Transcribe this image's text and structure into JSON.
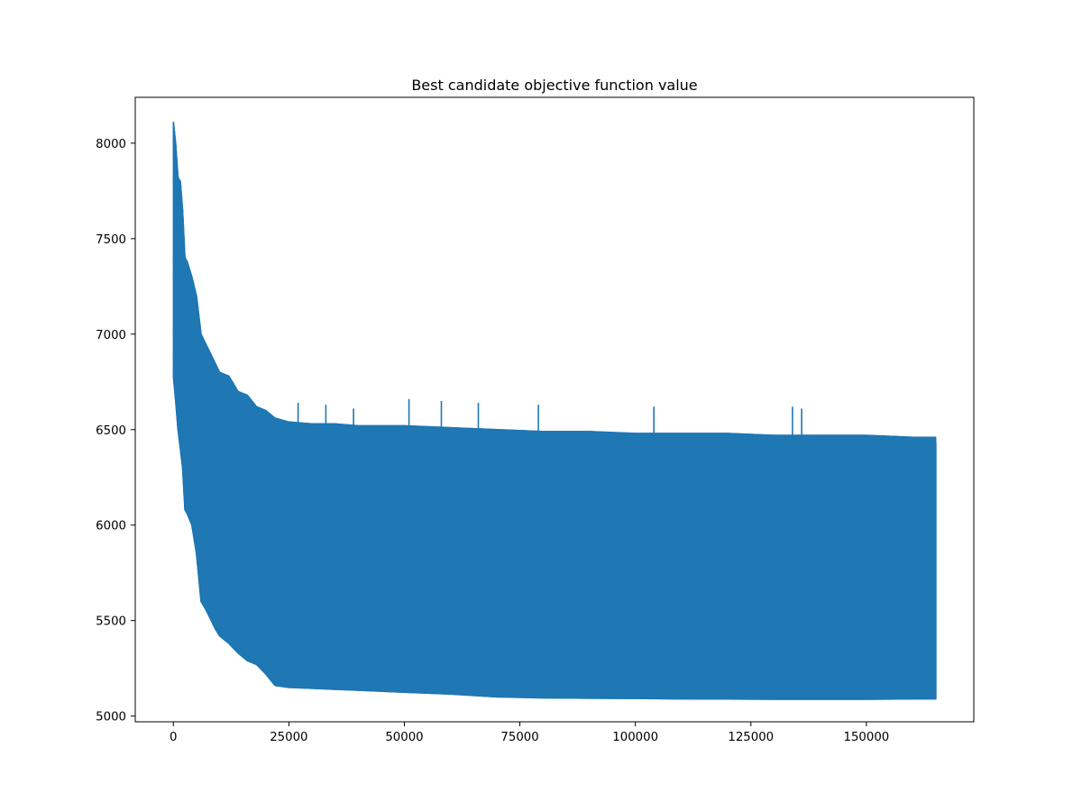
{
  "chart_data": {
    "type": "line",
    "title": "Best candidate objective function value",
    "xlabel": "",
    "ylabel": "",
    "xlim": [
      -8250,
      173250
    ],
    "ylim": [
      4970,
      8240
    ],
    "grid": false,
    "legend": "none",
    "xticks": [
      {
        "value": 0,
        "label": "0"
      },
      {
        "value": 25000,
        "label": "25000"
      },
      {
        "value": 50000,
        "label": "50000"
      },
      {
        "value": 75000,
        "label": "75000"
      },
      {
        "value": 100000,
        "label": "100000"
      },
      {
        "value": 125000,
        "label": "125000"
      },
      {
        "value": 150000,
        "label": "150000"
      }
    ],
    "yticks": [
      {
        "value": 5000,
        "label": "5000"
      },
      {
        "value": 5500,
        "label": "5500"
      },
      {
        "value": 6000,
        "label": "6000"
      },
      {
        "value": 6500,
        "label": "6500"
      },
      {
        "value": 7000,
        "label": "7000"
      },
      {
        "value": 7500,
        "label": "7500"
      },
      {
        "value": 8000,
        "label": "8000"
      }
    ],
    "series": [
      {
        "color": "#1f77b4",
        "description": "dense oscillating trace: upper and lower envelopes",
        "x": [
          0,
          500,
          1000,
          1500,
          2000,
          2500,
          3000,
          4000,
          5000,
          6000,
          7000,
          8000,
          9000,
          10000,
          12000,
          14000,
          16000,
          18000,
          20000,
          22000,
          25000,
          30000,
          35000,
          40000,
          50000,
          60000,
          70000,
          80000,
          90000,
          100000,
          110000,
          120000,
          130000,
          140000,
          150000,
          160000,
          165000
        ],
        "upper": [
          8110,
          8000,
          7820,
          7800,
          7650,
          7400,
          7380,
          7300,
          7200,
          7000,
          6950,
          6900,
          6850,
          6800,
          6780,
          6700,
          6680,
          6620,
          6600,
          6560,
          6540,
          6530,
          6530,
          6520,
          6520,
          6510,
          6500,
          6490,
          6490,
          6480,
          6480,
          6480,
          6470,
          6470,
          6470,
          6460,
          6460
        ],
        "lower": [
          6780,
          6650,
          6500,
          6400,
          6300,
          6080,
          6060,
          6000,
          5850,
          5600,
          5560,
          5510,
          5460,
          5420,
          5380,
          5330,
          5290,
          5270,
          5220,
          5160,
          5150,
          5145,
          5140,
          5135,
          5125,
          5115,
          5100,
          5095,
          5093,
          5092,
          5090,
          5089,
          5088,
          5088,
          5088,
          5090,
          5090
        ],
        "spikes": [
          {
            "x": 27000,
            "y": 6640
          },
          {
            "x": 33000,
            "y": 6630
          },
          {
            "x": 39000,
            "y": 6610
          },
          {
            "x": 51000,
            "y": 6660
          },
          {
            "x": 58000,
            "y": 6650
          },
          {
            "x": 66000,
            "y": 6640
          },
          {
            "x": 79000,
            "y": 6630
          },
          {
            "x": 104000,
            "y": 6620
          },
          {
            "x": 134000,
            "y": 6620
          },
          {
            "x": 136000,
            "y": 6610
          }
        ]
      }
    ]
  }
}
